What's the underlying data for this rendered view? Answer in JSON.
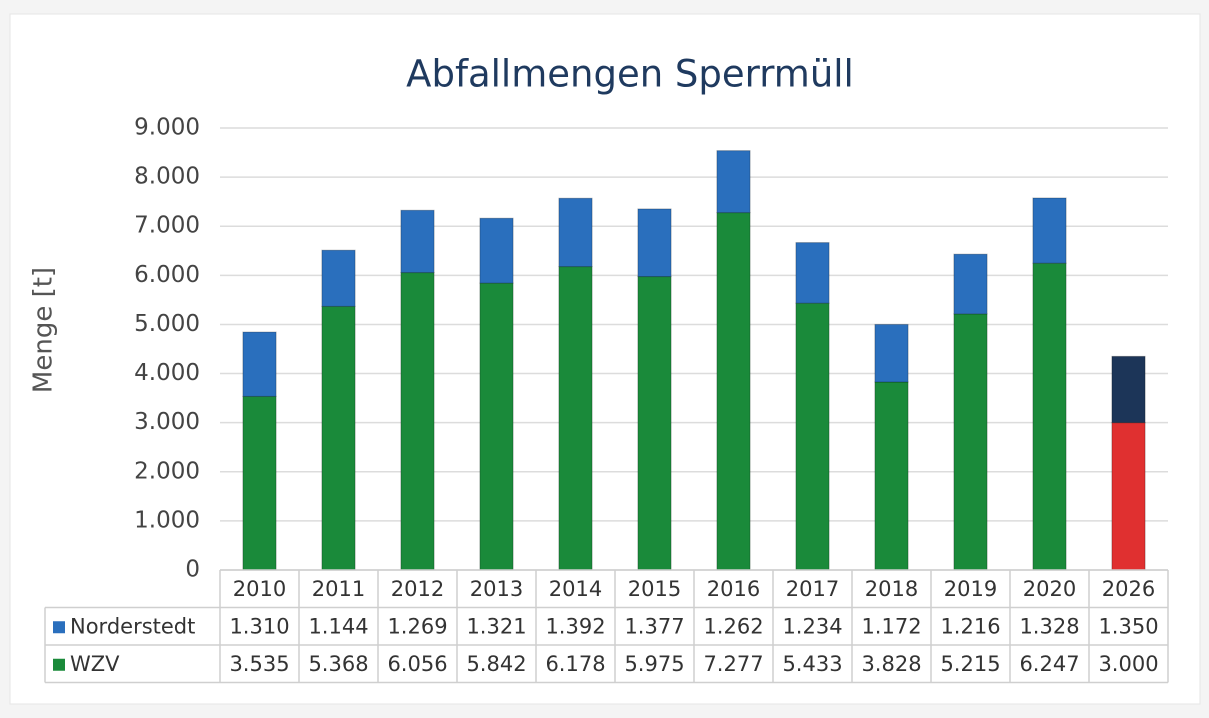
{
  "chart_data": {
    "type": "stacked_bar",
    "title": "Abfallmengen Sperrmüll",
    "y_label": "Menge [t]",
    "categories": [
      "2010",
      "2011",
      "2012",
      "2013",
      "2014",
      "2015",
      "2016",
      "2017",
      "2018",
      "2019",
      "2020",
      "2026"
    ],
    "series": [
      {
        "name": "Norderstedt",
        "color": "#2a6fbd",
        "colors": [
          "#2a6fbd",
          "#2a6fbd",
          "#2a6fbd",
          "#2a6fbd",
          "#2a6fbd",
          "#2a6fbd",
          "#2a6fbd",
          "#2a6fbd",
          "#2a6fbd",
          "#2a6fbd",
          "#2a6fbd",
          "#1c3558"
        ],
        "values": [
          1310,
          1144,
          1269,
          1321,
          1392,
          1377,
          1262,
          1234,
          1172,
          1216,
          1328,
          1350
        ],
        "value_labels": [
          "1.310",
          "1.144",
          "1.269",
          "1.321",
          "1.392",
          "1.377",
          "1.262",
          "1.234",
          "1.172",
          "1.216",
          "1.328",
          "1.350"
        ]
      },
      {
        "name": "WZV",
        "color": "#1a8a3a",
        "colors": [
          "#1a8a3a",
          "#1a8a3a",
          "#1a8a3a",
          "#1a8a3a",
          "#1a8a3a",
          "#1a8a3a",
          "#1a8a3a",
          "#1a8a3a",
          "#1a8a3a",
          "#1a8a3a",
          "#1a8a3a",
          "#e03030"
        ],
        "values": [
          3535,
          5368,
          6056,
          5842,
          6178,
          5975,
          7277,
          5433,
          3828,
          5215,
          6247,
          3000
        ],
        "value_labels": [
          "3.535",
          "5.368",
          "6.056",
          "5.842",
          "6.178",
          "5.975",
          "7.277",
          "5.433",
          "3.828",
          "5.215",
          "6.247",
          "3.000"
        ]
      }
    ],
    "stack_order": [
      1,
      0
    ],
    "ylim": [
      0,
      9000
    ],
    "yticks": [
      0,
      {
        "value": 1000,
        "label": "1.000"
      },
      {
        "value": 2000,
        "label": "2.000"
      },
      {
        "value": 3000,
        "label": "3.000"
      },
      {
        "value": 4000,
        "label": "4.000"
      },
      {
        "value": 5000,
        "label": "5.000"
      },
      {
        "value": 6000,
        "label": "6.000"
      },
      {
        "value": 7000,
        "label": "7.000"
      },
      {
        "value": 8000,
        "label": "8.000"
      },
      {
        "value": 9000,
        "label": "9.000"
      }
    ],
    "grid": true
  }
}
